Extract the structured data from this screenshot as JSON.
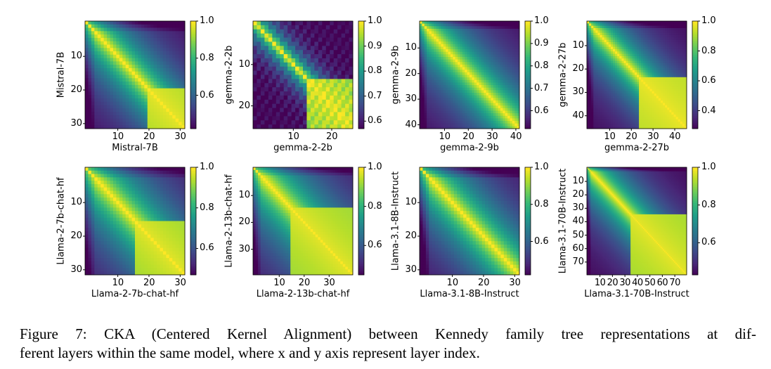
{
  "chart_data": [
    {
      "type": "heatmap",
      "title": "",
      "model": "Mistral-7B",
      "xlabel": "Mistral-7B",
      "ylabel": "Mistral-7B",
      "n_layers": 32,
      "ticks": [
        10,
        20,
        30
      ],
      "vmin": 0.42,
      "vmax": 1.0,
      "colorbar_ticks": [
        "1.0",
        "0.8",
        "0.6"
      ],
      "colorbar_tick_values": [
        1.0,
        0.8,
        0.6
      ],
      "block_start": 20,
      "decay": 0.35,
      "early_dip": 0.12
    },
    {
      "type": "heatmap",
      "title": "",
      "model": "gemma-2-2b",
      "xlabel": "gemma-2-2b",
      "ylabel": "gemma-2-2b",
      "n_layers": 26,
      "ticks": [
        10,
        20
      ],
      "vmin": 0.57,
      "vmax": 1.0,
      "colorbar_ticks": [
        "1.0",
        "0.9",
        "0.8",
        "0.7",
        "0.6"
      ],
      "colorbar_tick_values": [
        1.0,
        0.9,
        0.8,
        0.7,
        0.6
      ],
      "block_start": 14,
      "decay": 0.14,
      "early_dip": 0.0
    },
    {
      "type": "heatmap",
      "title": "",
      "model": "gemma-2-9b",
      "xlabel": "gemma-2-9b",
      "ylabel": "gemma-2-9b",
      "n_layers": 42,
      "ticks": [
        10,
        20,
        30,
        40
      ],
      "vmin": 0.52,
      "vmax": 1.0,
      "colorbar_ticks": [
        "1.0",
        "0.9",
        "0.8",
        "0.7",
        "0.6"
      ],
      "colorbar_tick_values": [
        1.0,
        0.9,
        0.8,
        0.7,
        0.6
      ],
      "block_start": 42,
      "decay": 0.35,
      "early_dip": 0.1
    },
    {
      "type": "heatmap",
      "title": "",
      "model": "gemma-2-27b",
      "xlabel": "gemma-2-27b",
      "ylabel": "gemma-2-27b",
      "n_layers": 46,
      "ticks": [
        10,
        20,
        30,
        40
      ],
      "vmin": 0.28,
      "vmax": 1.0,
      "colorbar_ticks": [
        "1.0",
        "0.8",
        "0.6",
        "0.4"
      ],
      "colorbar_tick_values": [
        1.0,
        0.8,
        0.6,
        0.4
      ],
      "block_start": 24,
      "decay": 0.3,
      "early_dip": 0.15
    },
    {
      "type": "heatmap",
      "title": "",
      "model": "Llama-2-7b-chat-hf",
      "xlabel": "Llama-2-7b-chat-hf",
      "ylabel": "Llama-2-7b-chat-hf",
      "n_layers": 32,
      "ticks": [
        10,
        20,
        30
      ],
      "vmin": 0.47,
      "vmax": 1.0,
      "colorbar_ticks": [
        "1.0",
        "0.8",
        "0.6"
      ],
      "colorbar_tick_values": [
        1.0,
        0.8,
        0.6
      ],
      "block_start": 16,
      "decay": 0.45,
      "early_dip": 0.1
    },
    {
      "type": "heatmap",
      "title": "",
      "model": "Llama-2-13b-chat-hf",
      "xlabel": "Llama-2-13b-chat-hf",
      "ylabel": "Llama-2-13b-chat-hf",
      "n_layers": 40,
      "ticks": [
        10,
        20,
        30
      ],
      "vmin": 0.45,
      "vmax": 1.0,
      "colorbar_ticks": [
        "1.0",
        "0.8",
        "0.6"
      ],
      "colorbar_tick_values": [
        1.0,
        0.8,
        0.6
      ],
      "block_start": 15,
      "decay": 0.45,
      "early_dip": 0.12
    },
    {
      "type": "heatmap",
      "title": "",
      "model": "Llama-3.1-8B-Instruct",
      "xlabel": "Llama-3.1-8B-Instruct",
      "ylabel": "Llama-3.1-8B-Instruct",
      "n_layers": 32,
      "ticks": [
        10,
        20,
        30
      ],
      "vmin": 0.42,
      "vmax": 1.0,
      "colorbar_ticks": [
        "1.0",
        "0.8",
        "0.6"
      ],
      "colorbar_tick_values": [
        1.0,
        0.8,
        0.6
      ],
      "block_start": 32,
      "decay": 0.4,
      "early_dip": 0.15
    },
    {
      "type": "heatmap",
      "title": "",
      "model": "Llama-3.1-70B-Instruct",
      "xlabel": "Llama-3.1-70B-Instruct",
      "ylabel": "Llama-3.1-70B-Instruct",
      "n_layers": 80,
      "ticks": [
        10,
        20,
        30,
        40,
        50,
        60,
        70
      ],
      "vmin": 0.43,
      "vmax": 1.0,
      "colorbar_ticks": [
        "1.0",
        "0.8",
        "0.6"
      ],
      "colorbar_tick_values": [
        1.0,
        0.8,
        0.6
      ],
      "block_start": 35,
      "decay": 0.3,
      "early_dip": 0.15
    }
  ],
  "caption": {
    "line1": "Figure 7: CKA (Centered Kernel Alignment) between Kennedy family tree representations at dif-",
    "line2": "ferent layers within the same model, where x and y axis represent layer index."
  }
}
